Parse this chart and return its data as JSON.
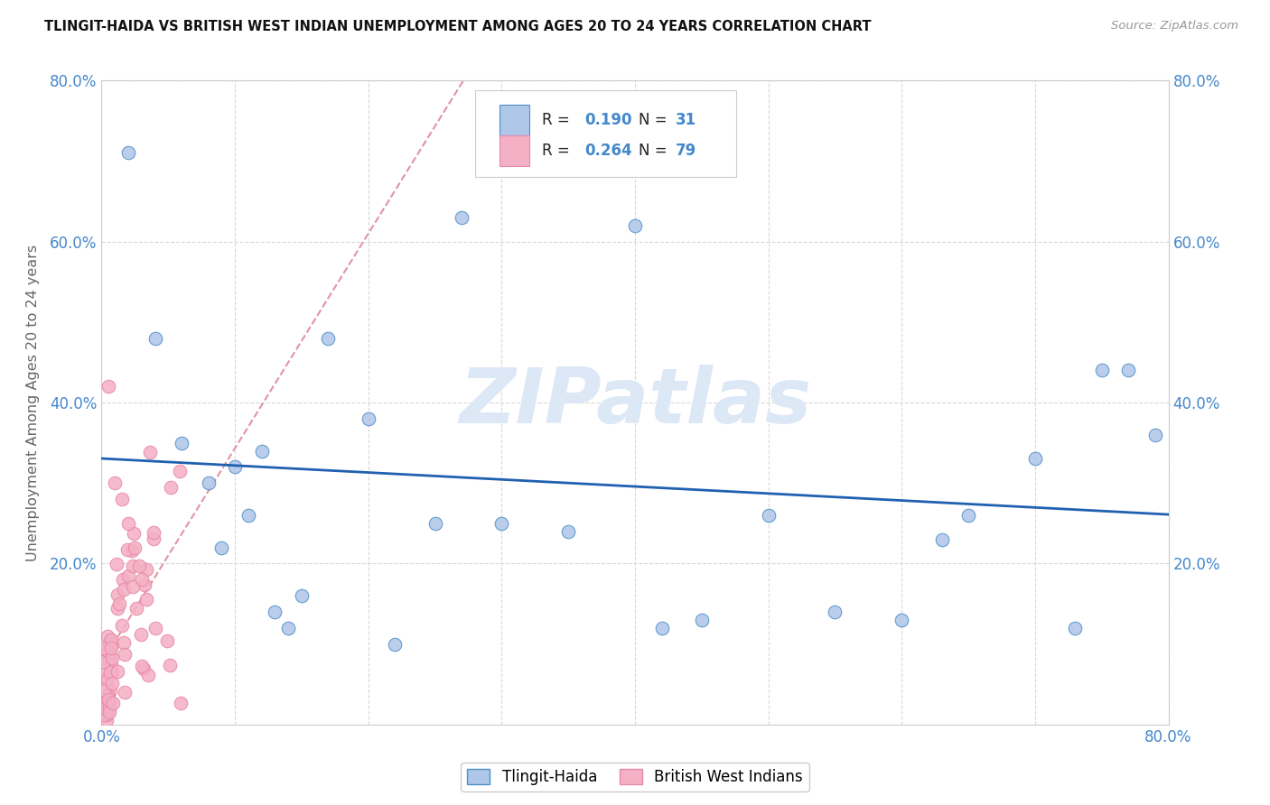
{
  "title": "TLINGIT-HAIDA VS BRITISH WEST INDIAN UNEMPLOYMENT AMONG AGES 20 TO 24 YEARS CORRELATION CHART",
  "source": "Source: ZipAtlas.com",
  "ylabel": "Unemployment Among Ages 20 to 24 years",
  "xlim": [
    0,
    0.8
  ],
  "ylim": [
    0,
    0.8
  ],
  "legend_label_1": "Tlingit-Haida",
  "legend_label_2": "British West Indians",
  "R1": "0.190",
  "N1": "31",
  "R2": "0.264",
  "N2": "79",
  "color_tlingit": "#aec6e8",
  "color_bwi": "#f4b0c4",
  "edge_tlingit": "#5090c8",
  "edge_bwi": "#e888a8",
  "trendline_blue": "#2060b0",
  "trendline_pink": "#e08898",
  "background_color": "#ffffff",
  "grid_color": "#d8d8d8",
  "axis_tick_color": "#4488cc",
  "watermark_text": "ZIPatlas",
  "watermark_color": "#dce8f5",
  "tlingit_x": [
    0.02,
    0.04,
    0.06,
    0.08,
    0.09,
    0.1,
    0.11,
    0.12,
    0.13,
    0.14,
    0.15,
    0.17,
    0.2,
    0.22,
    0.25,
    0.27,
    0.3,
    0.35,
    0.4,
    0.42,
    0.45,
    0.5,
    0.55,
    0.6,
    0.63,
    0.65,
    0.7,
    0.73,
    0.75,
    0.77,
    0.79
  ],
  "tlingit_y": [
    0.71,
    0.48,
    0.35,
    0.3,
    0.22,
    0.32,
    0.26,
    0.34,
    0.14,
    0.12,
    0.16,
    0.48,
    0.38,
    0.1,
    0.25,
    0.63,
    0.25,
    0.24,
    0.62,
    0.12,
    0.13,
    0.26,
    0.14,
    0.13,
    0.23,
    0.26,
    0.33,
    0.12,
    0.44,
    0.44,
    0.36
  ]
}
